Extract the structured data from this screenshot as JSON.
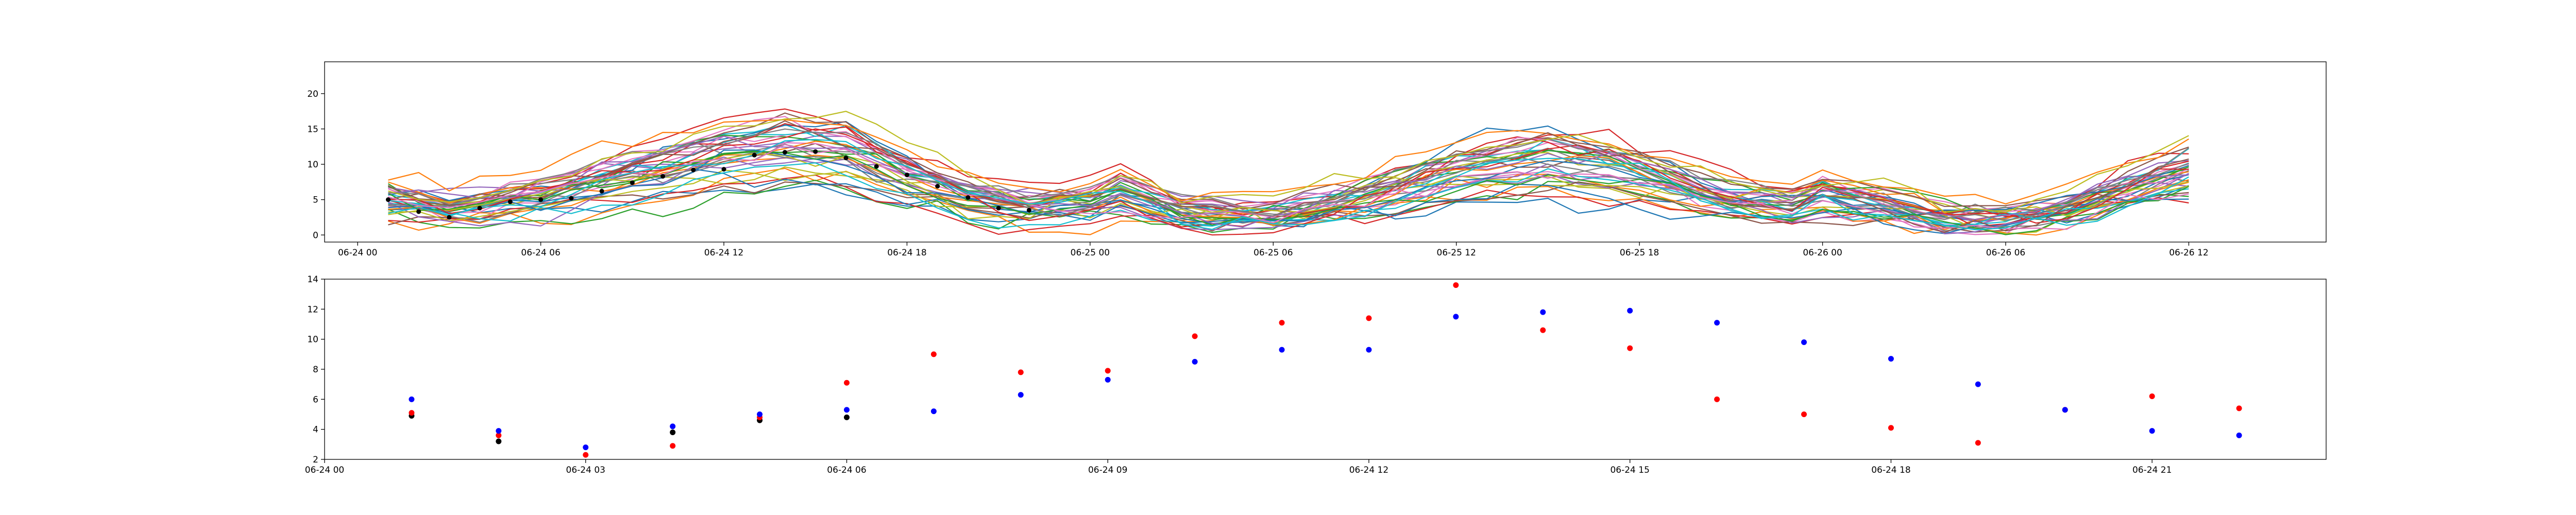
{
  "chart_data": [
    {
      "type": "line",
      "title": "",
      "xlabel": "",
      "ylabel": "",
      "x_range": [
        "06-23 22:55",
        "06-26 16:30"
      ],
      "ylim": [
        -1,
        24.5
      ],
      "x_tick_labels": [
        "06-24 00",
        "06-24 06",
        "06-24 12",
        "06-24 18",
        "06-25 00",
        "06-25 06",
        "06-25 12",
        "06-25 18",
        "06-26 00",
        "06-26 06",
        "06-26 12"
      ],
      "y_tick_labels": [
        "0",
        "5",
        "10",
        "15",
        "20"
      ],
      "grid": false,
      "legend": "none",
      "series_count": 40,
      "series_colors": [
        "#1f77b4",
        "#ff7f0e",
        "#2ca02c",
        "#d62728",
        "#9467bd",
        "#8c564b",
        "#e377c2",
        "#7f7f7f",
        "#bcbd22",
        "#17becf"
      ],
      "notes_on_series": "ensemble of hourly member trajectories, 06-24 01 to 06-26 12",
      "mean_marker_color": "#000000",
      "mean_marker_x": [
        "06-24 01",
        "06-24 02",
        "06-24 03",
        "06-24 04",
        "06-24 05",
        "06-24 06",
        "06-24 07",
        "06-24 08",
        "06-24 09",
        "06-24 10",
        "06-24 11",
        "06-24 12",
        "06-24 13",
        "06-24 14",
        "06-24 15",
        "06-24 16",
        "06-24 17",
        "06-24 18",
        "06-24 19",
        "06-24 20",
        "06-24 21",
        "06-24 22"
      ],
      "mean_marker_y": [
        5.0,
        3.3,
        2.5,
        3.8,
        4.7,
        5.0,
        5.2,
        6.2,
        7.4,
        8.3,
        9.2,
        9.3,
        11.3,
        11.7,
        11.8,
        10.9,
        9.7,
        8.5,
        6.9,
        5.3,
        3.8,
        3.5
      ]
    },
    {
      "type": "scatter",
      "title": "",
      "xlabel": "",
      "ylabel": "",
      "x_range": [
        "06-24 00:00",
        "06-24 23:00"
      ],
      "ylim": [
        2.0,
        14.0
      ],
      "x_tick_labels": [
        "06-24 00",
        "06-24 03",
        "06-24 06",
        "06-24 09",
        "06-24 12",
        "06-24 15",
        "06-24 18",
        "06-24 21"
      ],
      "y_tick_labels": [
        "2",
        "4",
        "6",
        "8",
        "10",
        "12",
        "14"
      ],
      "grid": false,
      "legend": "none",
      "x": [
        "06-24 01",
        "06-24 02",
        "06-24 03",
        "06-24 04",
        "06-24 05",
        "06-24 06",
        "06-24 07",
        "06-24 08",
        "06-24 09",
        "06-24 10",
        "06-24 11",
        "06-24 12",
        "06-24 13",
        "06-24 14",
        "06-24 15",
        "06-24 16",
        "06-24 17",
        "06-24 18",
        "06-24 19",
        "06-24 20",
        "06-24 21",
        "06-24 22"
      ],
      "series": [
        {
          "color": "#000000",
          "values": [
            4.9,
            3.2,
            null,
            3.8,
            4.6,
            4.8,
            null,
            null,
            null,
            null,
            null,
            null,
            null,
            null,
            null,
            null,
            null,
            null,
            null,
            null,
            null,
            null
          ]
        },
        {
          "color": "#ff0000",
          "values": [
            5.1,
            3.6,
            2.3,
            2.9,
            4.8,
            7.1,
            9.0,
            7.8,
            7.9,
            10.2,
            11.1,
            11.4,
            13.6,
            10.6,
            9.4,
            6.0,
            5.0,
            4.1,
            3.1,
            5.3,
            6.2,
            5.4
          ]
        },
        {
          "color": "#0000ff",
          "values": [
            6.0,
            3.9,
            2.8,
            4.2,
            5.0,
            5.3,
            5.2,
            6.3,
            7.3,
            8.5,
            9.3,
            9.3,
            11.5,
            11.8,
            11.9,
            11.1,
            9.8,
            8.7,
            7.0,
            5.3,
            3.9,
            3.6
          ]
        }
      ]
    }
  ]
}
